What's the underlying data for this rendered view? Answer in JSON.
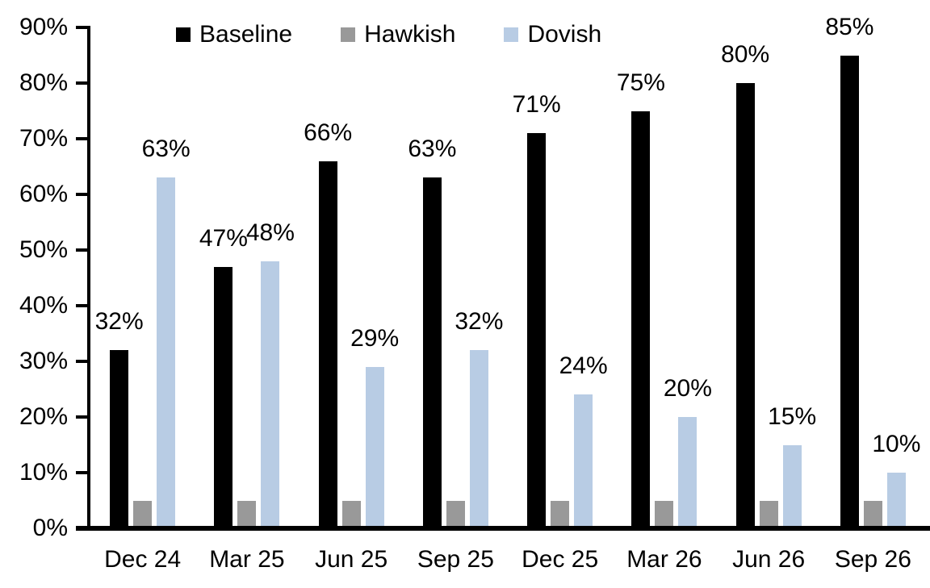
{
  "chart_data": {
    "type": "bar",
    "title": "",
    "xlabel": "",
    "ylabel": "",
    "background_color": "#FFFFFF",
    "grid": "off",
    "categories": [
      "Dec 24",
      "Mar 25",
      "Jun 25",
      "Sep 25",
      "Dec 25",
      "Mar 26",
      "Jun 26",
      "Sep 26"
    ],
    "series": [
      {
        "name": "Baseline",
        "color": "#000000",
        "values": [
          32,
          47,
          66,
          63,
          71,
          75,
          80,
          85
        ],
        "data_labels": [
          "32%",
          "47%",
          "66%",
          "63%",
          "71%",
          "75%",
          "80%",
          "85%"
        ],
        "labels_shown": true
      },
      {
        "name": "Hawkish",
        "color": "#999999",
        "values": [
          5,
          5,
          5,
          5,
          5,
          5,
          5,
          5
        ],
        "data_labels": [
          "",
          "",
          "",
          "",
          "",
          "",
          "",
          ""
        ],
        "labels_shown": false
      },
      {
        "name": "Dovish",
        "color": "#B8CCE4",
        "values": [
          63,
          48,
          29,
          32,
          24,
          20,
          15,
          10
        ],
        "data_labels": [
          "63%",
          "48%",
          "29%",
          "32%",
          "24%",
          "20%",
          "15%",
          "10%"
        ],
        "labels_shown": true
      }
    ],
    "y_axis": {
      "min": 0,
      "max": 90,
      "step": 10,
      "tick_labels": [
        "0%",
        "10%",
        "20%",
        "30%",
        "40%",
        "50%",
        "60%",
        "70%",
        "80%",
        "90%"
      ]
    },
    "legend": {
      "position": "top",
      "entries": [
        "Baseline",
        "Hawkish",
        "Dovish"
      ]
    }
  }
}
